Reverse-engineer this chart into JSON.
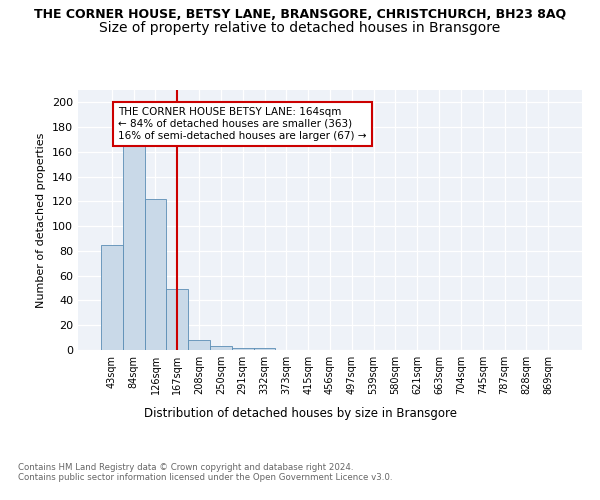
{
  "title": "THE CORNER HOUSE, BETSY LANE, BRANSGORE, CHRISTCHURCH, BH23 8AQ",
  "subtitle": "Size of property relative to detached houses in Bransgore",
  "xlabel": "Distribution of detached houses by size in Bransgore",
  "ylabel": "Number of detached properties",
  "bin_labels": [
    "43sqm",
    "84sqm",
    "126sqm",
    "167sqm",
    "208sqm",
    "250sqm",
    "291sqm",
    "332sqm",
    "373sqm",
    "415sqm",
    "456sqm",
    "497sqm",
    "539sqm",
    "580sqm",
    "621sqm",
    "663sqm",
    "704sqm",
    "745sqm",
    "787sqm",
    "828sqm",
    "869sqm"
  ],
  "bar_heights": [
    85,
    167,
    122,
    49,
    8,
    3,
    2,
    2,
    0,
    0,
    0,
    0,
    0,
    0,
    0,
    0,
    0,
    0,
    0,
    0,
    0
  ],
  "bar_color": "#c9d9e8",
  "bar_edge_color": "#5a8db5",
  "red_line_x": 3.0,
  "red_line_color": "#cc0000",
  "ylim": [
    0,
    210
  ],
  "yticks": [
    0,
    20,
    40,
    60,
    80,
    100,
    120,
    140,
    160,
    180,
    200
  ],
  "annotation_text": "THE CORNER HOUSE BETSY LANE: 164sqm\n← 84% of detached houses are smaller (363)\n16% of semi-detached houses are larger (67) →",
  "annotation_box_color": "#ffffff",
  "annotation_box_edge": "#cc0000",
  "footer_text": "Contains HM Land Registry data © Crown copyright and database right 2024.\nContains public sector information licensed under the Open Government Licence v3.0.",
  "background_color": "#eef2f8",
  "grid_color": "#ffffff",
  "title_fontsize": 9,
  "subtitle_fontsize": 10
}
